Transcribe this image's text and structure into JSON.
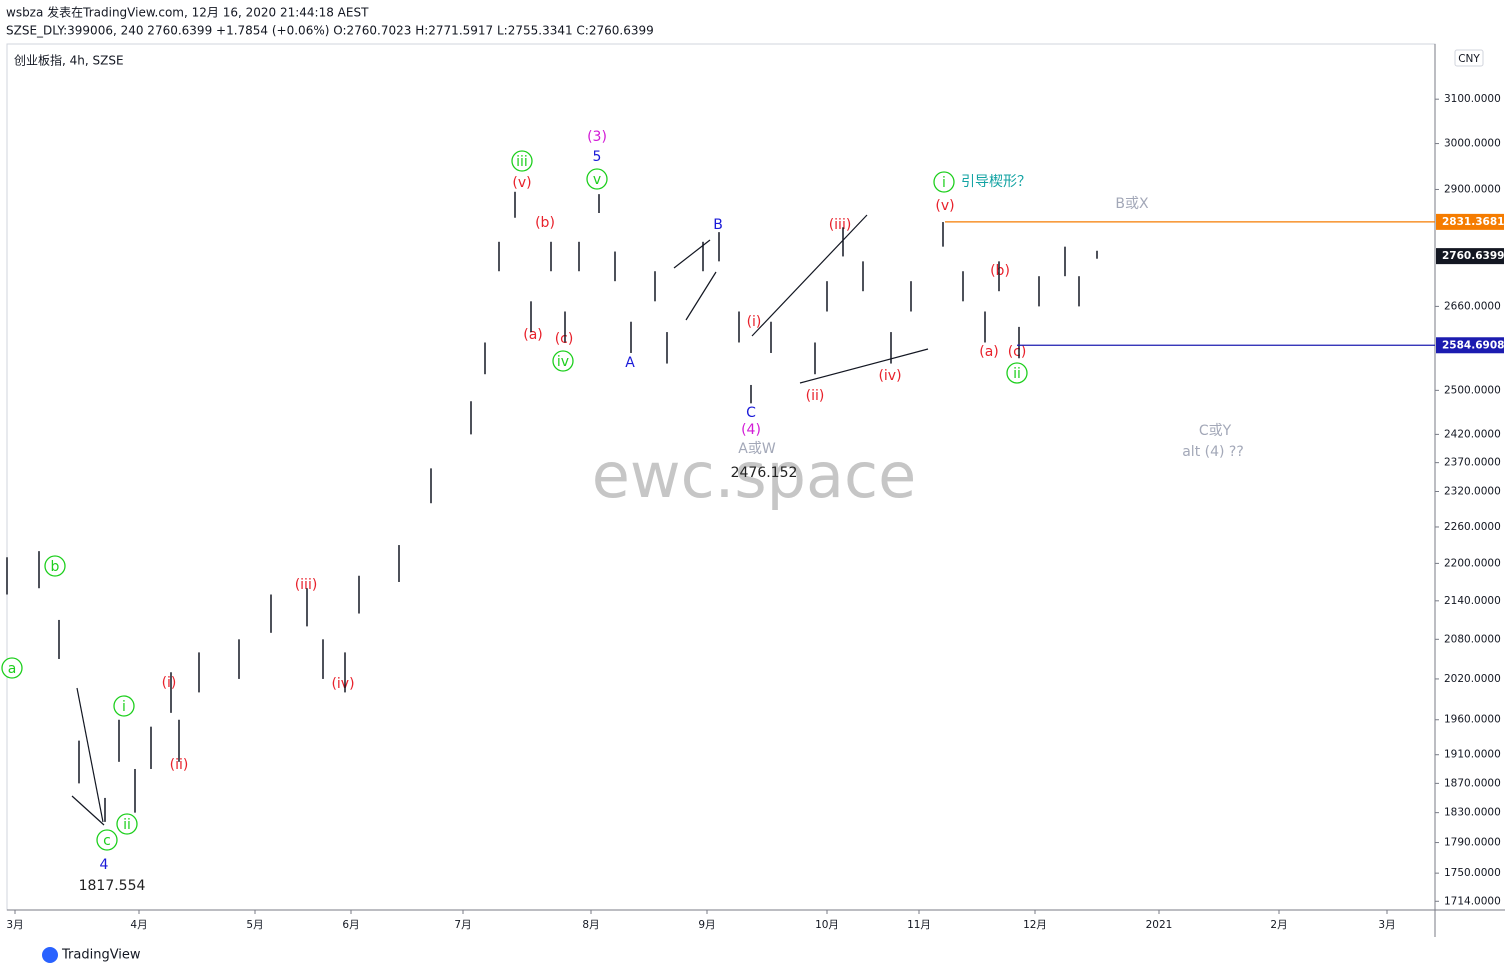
{
  "header": {
    "line1": "wsbza 发表在TradingView.com, 12月 16, 2020 21:44:18 AEST",
    "line2": "SZSE_DLY:399006, 240 2760.6399 +1.7854 (+0.06%) O:2760.7023 H:2771.5917 L:2755.3341 C:2760.6399"
  },
  "symbol": "创业板指, 4h, SZSE",
  "currency": "CNY",
  "brand": "TradingView",
  "watermark": "ewc.space",
  "chart_data": {
    "type": "ohlc",
    "log": true,
    "color": "#131722",
    "x": [
      0,
      8,
      13,
      18,
      24.5,
      28,
      32,
      36,
      41,
      43,
      48,
      58,
      66,
      75,
      79,
      84.5,
      88,
      98,
      106,
      116,
      119.5,
      123,
      127,
      131,
      136,
      139.5,
      143,
      148,
      152,
      156,
      162,
      165,
      174,
      178,
      183,
      186,
      191,
      202,
      205,
      209,
      214,
      221,
      226,
      234,
      239,
      244.5,
      248,
      253,
      258,
      264.5,
      268,
      272.5
    ],
    "high": [
      2210,
      2220,
      2110,
      1930,
      1850,
      1960,
      1890,
      1950,
      2030,
      1960,
      2060,
      2080,
      2150,
      2160,
      2080,
      2060,
      2180,
      2230,
      2360,
      2480,
      2590,
      2790,
      2895,
      2670,
      2790,
      2650,
      2790,
      2890,
      2770,
      2630,
      2730,
      2610,
      2790,
      2810,
      2650,
      2510,
      2630,
      2590,
      2710,
      2820,
      2750,
      2610,
      2710,
      2831,
      2730,
      2650,
      2750,
      2620,
      2720,
      2780,
      2720,
      2771.5917
    ],
    "low": [
      2150,
      2160,
      2050,
      1870,
      1817.554,
      1900,
      1830,
      1890,
      1970,
      1900,
      2000,
      2020,
      2090,
      2100,
      2020,
      2000,
      2120,
      2170,
      2300,
      2420,
      2530,
      2730,
      2840,
      2610,
      2730,
      2590,
      2730,
      2850,
      2710,
      2570,
      2670,
      2550,
      2730,
      2750,
      2590,
      2476.152,
      2570,
      2530,
      2650,
      2760,
      2690,
      2550,
      2650,
      2780,
      2670,
      2590,
      2690,
      2560,
      2660,
      2720,
      2660,
      2755.3341
    ],
    "xlim": [
      0,
      357
    ],
    "ylim": [
      1703,
      3229
    ],
    "xticks": [
      {
        "value": 2,
        "label": "3月"
      },
      {
        "value": 33,
        "label": "4月"
      },
      {
        "value": 62,
        "label": "5月"
      },
      {
        "value": 86,
        "label": "6月"
      },
      {
        "value": 114,
        "label": "7月"
      },
      {
        "value": 146,
        "label": "8月"
      },
      {
        "value": 175,
        "label": "9月"
      },
      {
        "value": 205,
        "label": "10月"
      },
      {
        "value": 228,
        "label": "11月"
      },
      {
        "value": 257,
        "label": "12月"
      },
      {
        "value": 288,
        "label": "2021"
      },
      {
        "value": 318,
        "label": "2月"
      },
      {
        "value": 345,
        "label": "3月"
      }
    ],
    "yticks": [
      {
        "value": 3100,
        "label": "3100.0000"
      },
      {
        "value": 3000,
        "label": "3000.0000"
      },
      {
        "value": 2900,
        "label": "2900.0000"
      },
      {
        "value": 2660,
        "label": "2660.0000"
      },
      {
        "value": 2500,
        "label": "2500.0000"
      },
      {
        "value": 2420,
        "label": "2420.0000"
      },
      {
        "value": 2370,
        "label": "2370.0000"
      },
      {
        "value": 2320,
        "label": "2320.0000"
      },
      {
        "value": 2260,
        "label": "2260.0000"
      },
      {
        "value": 2200,
        "label": "2200.0000"
      },
      {
        "value": 2140,
        "label": "2140.0000"
      },
      {
        "value": 2080,
        "label": "2080.0000"
      },
      {
        "value": 2020,
        "label": "2020.0000"
      },
      {
        "value": 1960,
        "label": "1960.0000"
      },
      {
        "value": 1910,
        "label": "1910.0000"
      },
      {
        "value": 1870,
        "label": "1870.0000"
      },
      {
        "value": 1830,
        "label": "1830.0000"
      },
      {
        "value": 1790,
        "label": "1790.0000"
      },
      {
        "value": 1750,
        "label": "1750.0000"
      },
      {
        "value": 1714,
        "label": "1714.0000"
      }
    ],
    "price_labels": [
      {
        "value": 2831.3681,
        "color": "#f57c00",
        "line": true
      },
      {
        "value": 2760.6399,
        "color": "#131722",
        "line": false
      },
      {
        "value": 2584.6908,
        "color": "#1c1cb0",
        "line": true
      }
    ],
    "annotations": [
      "b",
      "a",
      "i",
      "ii",
      "c",
      "iii",
      "v",
      "iv",
      "i",
      "ii",
      "(iii)",
      "(i)",
      "(ii)",
      "(iv)",
      "(v)",
      "(b)",
      "(a)",
      "(c)",
      "(i)",
      "(ii)",
      "(iii)",
      "(iv)",
      "(v)",
      "(b)",
      "(a)",
      "(c)",
      "(3)",
      "(4)",
      "5",
      "4",
      "A",
      "B",
      "C",
      "1817.554",
      "2476.152",
      "A或W",
      "B或X",
      "C或Y",
      "alt (4) ??",
      "引导楔形？"
    ]
  }
}
